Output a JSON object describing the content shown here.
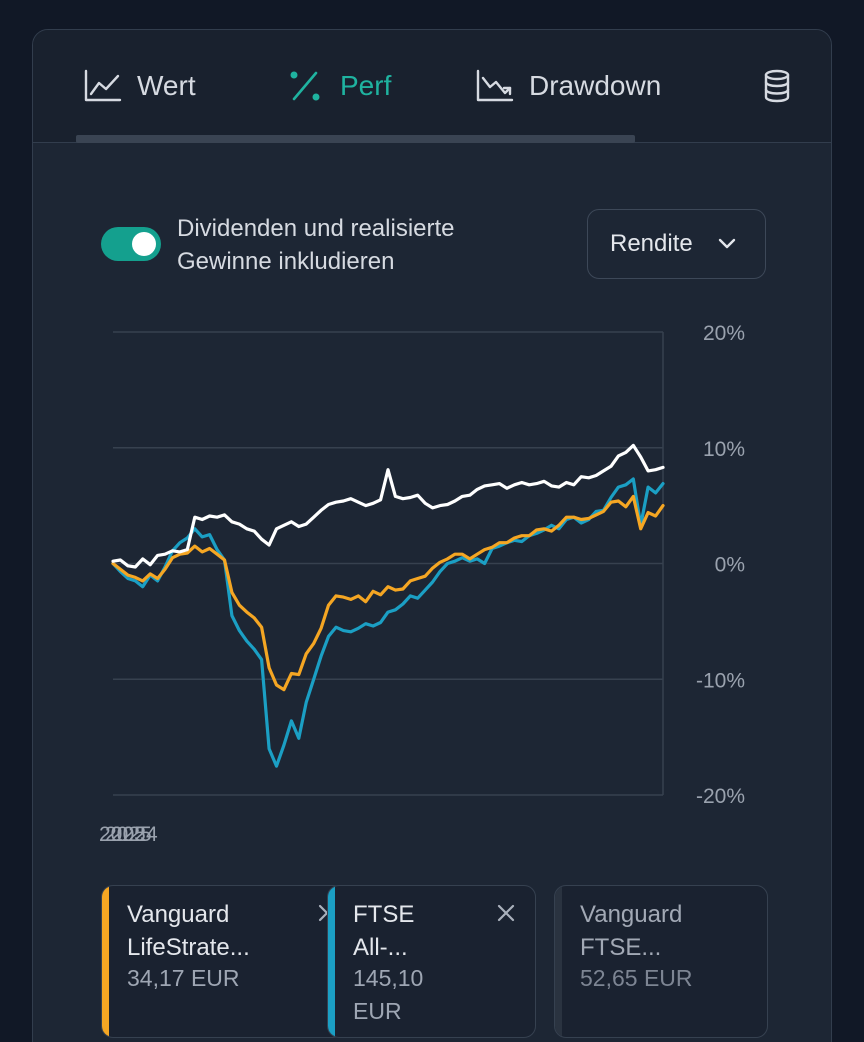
{
  "tabs": [
    {
      "label": "Wert",
      "icon": "line-chart-icon",
      "active": false
    },
    {
      "label": "Perf",
      "icon": "percent-icon",
      "active": true
    },
    {
      "label": "Drawdown",
      "icon": "drawdown-chart-icon",
      "active": false
    },
    {
      "label": "",
      "icon": "coins-stack-icon",
      "active": false
    }
  ],
  "toggle": {
    "label_line1": "Dividenden und realisierte",
    "label_line2": "Gewinne inkludieren",
    "on": true
  },
  "select": {
    "value": "Rendite",
    "icon": "chevron-down-icon"
  },
  "colors": {
    "accent": "#1fb3a0",
    "series_orange": "#f5a623",
    "series_blue": "#1b9fc4",
    "series_white": "#ffffff"
  },
  "chart_data": {
    "type": "line",
    "y_tick_labels": [
      "20%",
      "10%",
      "0%",
      "-10%",
      "-20%"
    ],
    "x_tick_labels": [
      "2025",
      "2025",
      "2024"
    ],
    "ylim": [
      -20,
      20
    ],
    "grid": true,
    "series": [
      {
        "name": "",
        "color": "#ffffff",
        "values": [
          0.2,
          0.3,
          -0.2,
          -0.3,
          0.4,
          -0.1,
          0.7,
          0.8,
          1.1,
          1.0,
          1.2,
          4.0,
          3.8,
          4.1,
          4.0,
          4.2,
          3.6,
          3.4,
          3.0,
          2.8,
          2.1,
          1.6,
          3.0,
          3.3,
          3.6,
          3.2,
          3.4,
          4.0,
          4.6,
          5.1,
          5.3,
          5.4,
          5.6,
          5.3,
          5.0,
          5.2,
          5.5,
          8.1,
          5.8,
          5.6,
          5.7,
          5.9,
          5.2,
          4.8,
          5.0,
          5.1,
          5.4,
          5.8,
          5.9,
          6.4,
          6.7,
          6.8,
          6.9,
          6.5,
          6.8,
          7.0,
          6.8,
          6.9,
          7.1,
          6.7,
          6.6,
          7.0,
          6.8,
          7.5,
          7.4,
          7.6,
          8.0,
          8.4,
          9.3,
          9.6,
          10.2,
          9.2,
          8.0,
          8.1,
          8.3
        ]
      },
      {
        "name": "",
        "color": "#f5a623",
        "values": [
          0.0,
          -0.5,
          -1.0,
          -1.2,
          -1.5,
          -0.9,
          -1.3,
          -0.5,
          0.5,
          0.8,
          0.9,
          1.5,
          1.0,
          1.3,
          0.8,
          0.3,
          -2.5,
          -3.6,
          -4.2,
          -4.7,
          -5.5,
          -9.0,
          -10.5,
          -10.9,
          -9.5,
          -9.6,
          -7.8,
          -6.9,
          -5.6,
          -3.6,
          -2.8,
          -2.9,
          -3.1,
          -2.8,
          -3.3,
          -2.4,
          -2.7,
          -2.0,
          -2.3,
          -2.2,
          -1.5,
          -1.3,
          -1.1,
          -0.4,
          0.1,
          0.4,
          0.8,
          0.8,
          0.4,
          0.8,
          1.2,
          1.4,
          1.8,
          1.8,
          2.2,
          2.4,
          2.4,
          2.9,
          3.0,
          2.8,
          3.3,
          4.0,
          4.0,
          3.8,
          3.9,
          4.2,
          4.5,
          5.3,
          5.4,
          4.9,
          5.8,
          3.0,
          4.4,
          4.1,
          5.0
        ]
      },
      {
        "name": "",
        "color": "#1b9fc4",
        "values": [
          0.0,
          -0.7,
          -1.3,
          -1.5,
          -2.0,
          -1.0,
          -1.5,
          -0.3,
          1.1,
          1.8,
          2.2,
          3.0,
          2.3,
          2.5,
          1.2,
          0.3,
          -4.5,
          -5.8,
          -6.7,
          -7.4,
          -8.3,
          -16.0,
          -17.5,
          -15.7,
          -13.6,
          -15.1,
          -12.0,
          -10.0,
          -8.0,
          -6.3,
          -5.5,
          -5.8,
          -5.9,
          -5.6,
          -5.2,
          -5.4,
          -5.1,
          -4.2,
          -4.0,
          -3.5,
          -2.8,
          -3.0,
          -2.3,
          -1.6,
          -0.7,
          0.0,
          0.2,
          0.5,
          0.2,
          0.4,
          0.0,
          1.3,
          1.5,
          1.8,
          2.0,
          1.9,
          2.4,
          2.6,
          2.9,
          3.3,
          3.0,
          3.8,
          4.0,
          3.5,
          3.8,
          4.5,
          4.6,
          5.7,
          6.6,
          6.8,
          7.3,
          3.3,
          6.6,
          6.1,
          6.9
        ]
      }
    ]
  },
  "cards": [
    {
      "name_line1": "Vanguard",
      "name_line2": "LifeStrate...",
      "value_line1": "34,17 EUR",
      "value_line2": "",
      "color": "#f5a623",
      "icon": "close-icon"
    },
    {
      "name_line1": "FTSE",
      "name_line2": "All-...",
      "value_line1": "145,10",
      "value_line2": "EUR",
      "color": "#1b9fc4",
      "icon": "close-icon"
    },
    {
      "name_line1": "Vanguard",
      "name_line2": "FTSE...",
      "value_line1": "52,65 EUR",
      "value_line2": "",
      "color": "#2a3340",
      "icon": ""
    }
  ]
}
